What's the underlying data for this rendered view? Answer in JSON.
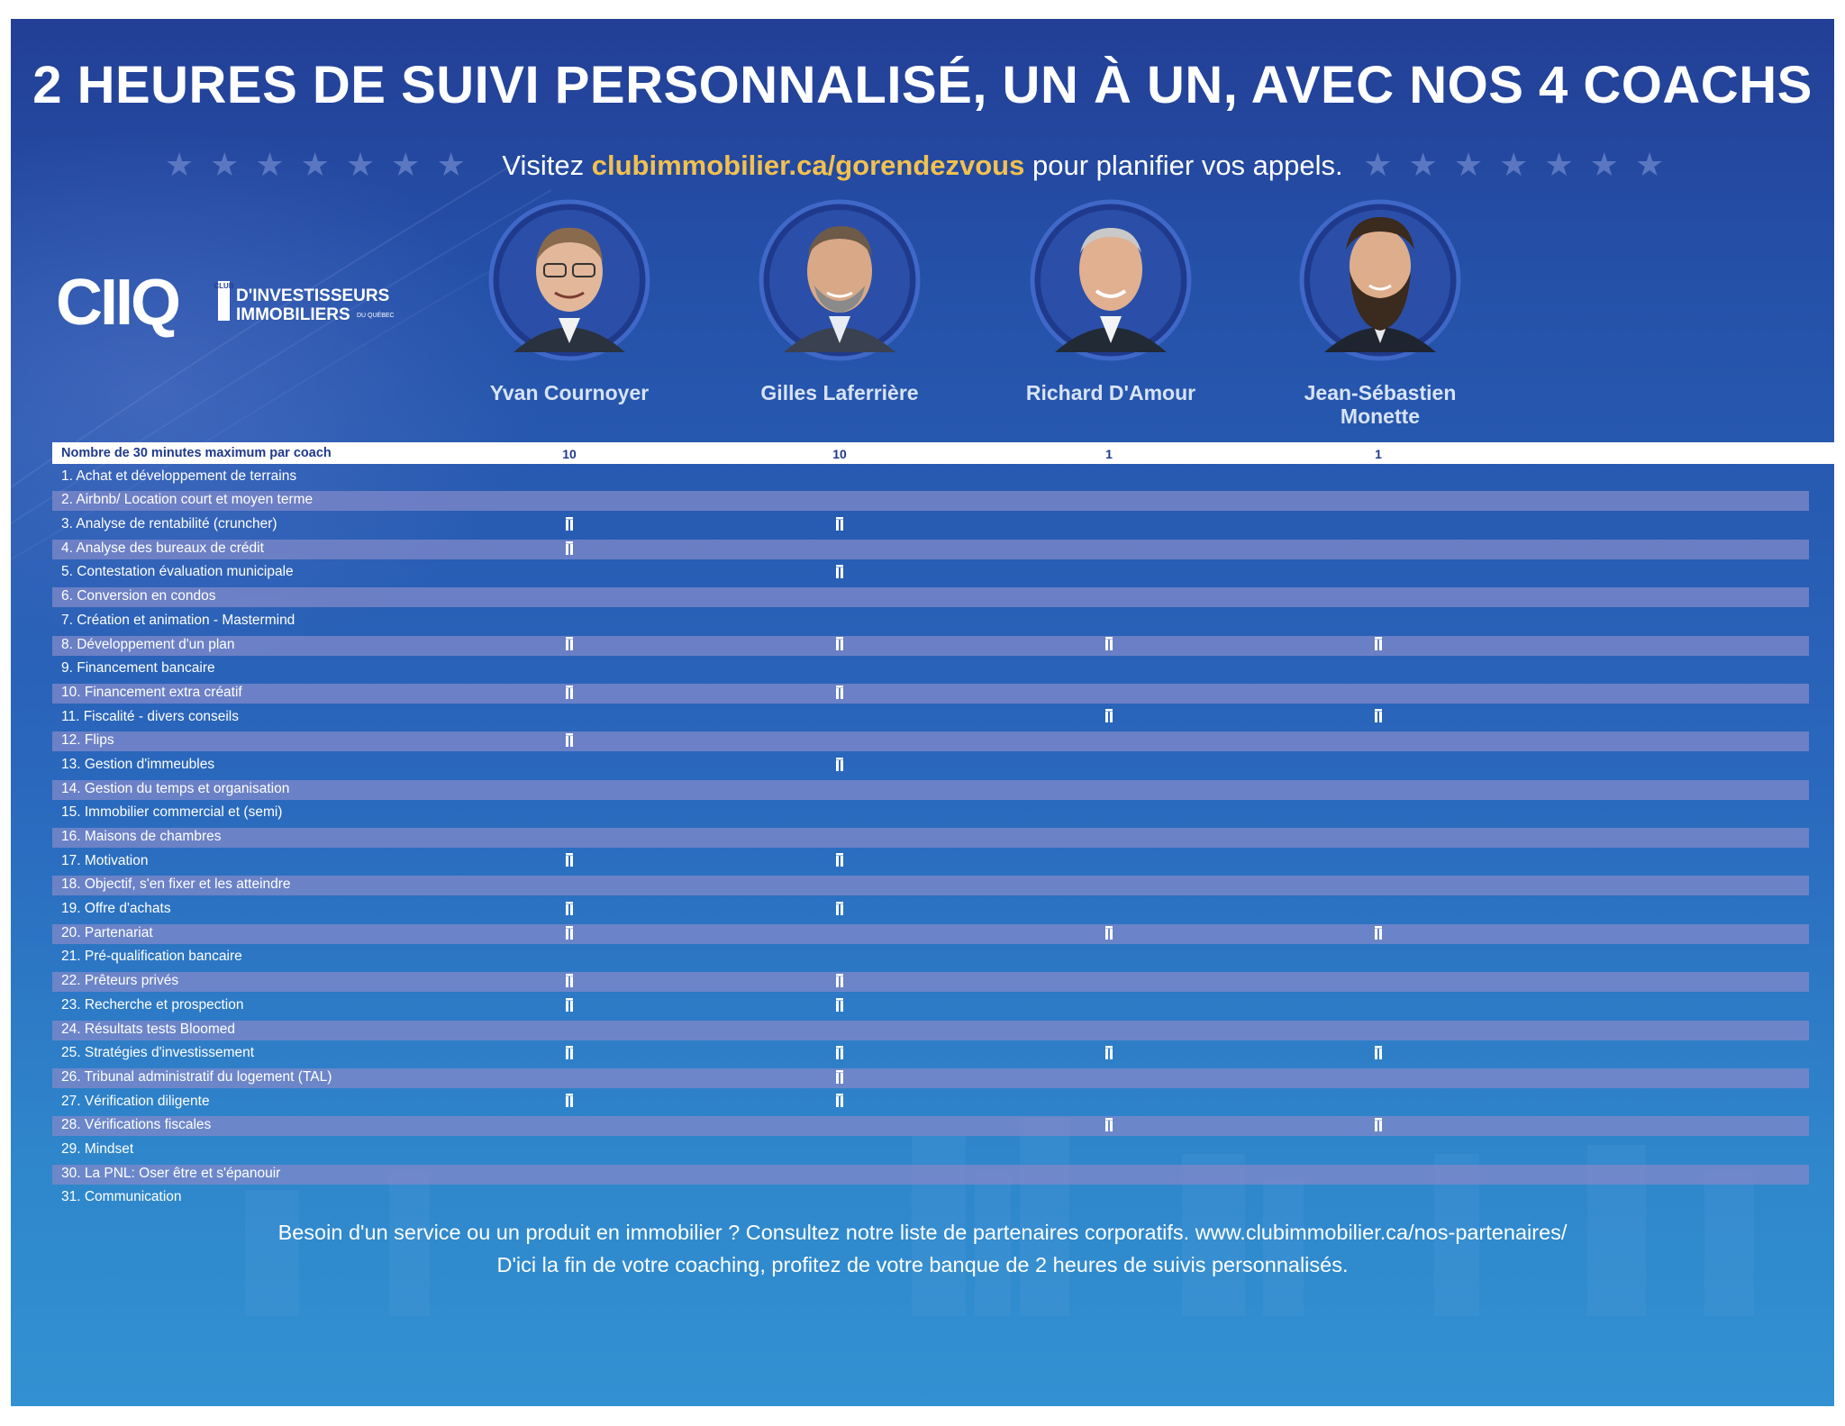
{
  "header": {
    "title": "2 HEURES DE SUIVI PERSONNALISÉ, UN À UN, AVEC NOS 4 COACHS",
    "visit_prefix": "Visitez",
    "visit_url": "clubimmobilier.ca/gorendezvous",
    "visit_suffix": "pour planifier vos appels.",
    "stars": "★★★★★★★"
  },
  "logo": {
    "mark": "CIIQ",
    "club": "CLUB",
    "line1": "D'INVESTISSEURS",
    "line2": "IMMOBILIERS",
    "line3": "DU QUÉBEC"
  },
  "coaches": [
    {
      "name": "Yvan Cournoyer",
      "max": "10"
    },
    {
      "name": "Gilles Laferrière",
      "max": "10"
    },
    {
      "name": "Richard D'Amour",
      "max": "1"
    },
    {
      "name": "Jean-Sébastien Monette",
      "max": "1"
    }
  ],
  "table": {
    "header_label": "Nombre de 30 minutes maximum par coach",
    "check_icon": "check-mark-icon",
    "topics": [
      {
        "label": "1. Achat et développement de terrains",
        "marks": [
          false,
          false,
          false,
          false
        ]
      },
      {
        "label": "2. Airbnb/ Location court et moyen terme",
        "marks": [
          false,
          false,
          false,
          false
        ]
      },
      {
        "label": "3. Analyse de rentabilité (cruncher)",
        "marks": [
          true,
          true,
          false,
          false
        ]
      },
      {
        "label": "4. Analyse des bureaux de crédit",
        "marks": [
          true,
          false,
          false,
          false
        ]
      },
      {
        "label": "5. Contestation évaluation municipale",
        "marks": [
          false,
          true,
          false,
          false
        ]
      },
      {
        "label": "6. Conversion en condos",
        "marks": [
          false,
          false,
          false,
          false
        ]
      },
      {
        "label": "7. Création et animation - Mastermind",
        "marks": [
          false,
          false,
          false,
          false
        ]
      },
      {
        "label": "8. Développement d'un plan",
        "marks": [
          true,
          true,
          true,
          true
        ]
      },
      {
        "label": "9. Financement bancaire",
        "marks": [
          false,
          false,
          false,
          false
        ]
      },
      {
        "label": "10. Financement extra créatif",
        "marks": [
          true,
          true,
          false,
          false
        ]
      },
      {
        "label": "11. Fiscalité - divers conseils",
        "marks": [
          false,
          false,
          true,
          true
        ]
      },
      {
        "label": "12. Flips",
        "marks": [
          true,
          false,
          false,
          false
        ]
      },
      {
        "label": "13. Gestion d'immeubles",
        "marks": [
          false,
          true,
          false,
          false
        ]
      },
      {
        "label": "14. Gestion du temps et organisation",
        "marks": [
          false,
          false,
          false,
          false
        ]
      },
      {
        "label": "15. Immobilier commercial et (semi)",
        "marks": [
          false,
          false,
          false,
          false
        ]
      },
      {
        "label": "16. Maisons de chambres",
        "marks": [
          false,
          false,
          false,
          false
        ]
      },
      {
        "label": "17. Motivation",
        "marks": [
          true,
          true,
          false,
          false
        ]
      },
      {
        "label": "18. Objectif, s'en fixer et les atteindre",
        "marks": [
          false,
          false,
          false,
          false
        ]
      },
      {
        "label": "19. Offre d'achats",
        "marks": [
          true,
          true,
          false,
          false
        ]
      },
      {
        "label": "20. Partenariat",
        "marks": [
          true,
          false,
          true,
          true
        ]
      },
      {
        "label": "21. Pré-qualification bancaire",
        "marks": [
          false,
          false,
          false,
          false
        ]
      },
      {
        "label": "22. Prêteurs privés",
        "marks": [
          true,
          true,
          false,
          false
        ]
      },
      {
        "label": "23. Recherche et prospection",
        "marks": [
          true,
          true,
          false,
          false
        ]
      },
      {
        "label": "24. Résultats tests Bloomed",
        "marks": [
          false,
          false,
          false,
          false
        ]
      },
      {
        "label": "25. Stratégies d'investissement",
        "marks": [
          true,
          true,
          true,
          true
        ]
      },
      {
        "label": "26. Tribunal administratif du logement (TAL)",
        "marks": [
          false,
          true,
          false,
          false
        ]
      },
      {
        "label": "27. Vérification diligente",
        "marks": [
          true,
          true,
          false,
          false
        ]
      },
      {
        "label": "28. Vérifications fiscales",
        "marks": [
          false,
          false,
          true,
          true
        ]
      },
      {
        "label": "29. Mindset",
        "marks": [
          false,
          false,
          false,
          false
        ]
      },
      {
        "label": "30. La PNL: Oser être et s'épanouir",
        "marks": [
          false,
          false,
          false,
          false
        ]
      },
      {
        "label": "31. Communication",
        "marks": [
          false,
          false,
          false,
          false
        ]
      }
    ]
  },
  "footer": {
    "line1": "Besoin d'un service ou un produit en immobilier ? Consultez notre liste de partenaires corporatifs.  www.clubimmobilier.ca/nos-partenaires/",
    "line2": "D'ici la fin de votre coaching, profitez de votre banque de 2 heures de suivis personnalisés."
  },
  "colors": {
    "accent_url": "#f2c14e",
    "row_stripe": "#7d88c9",
    "header_text": "#1f3a8c"
  }
}
